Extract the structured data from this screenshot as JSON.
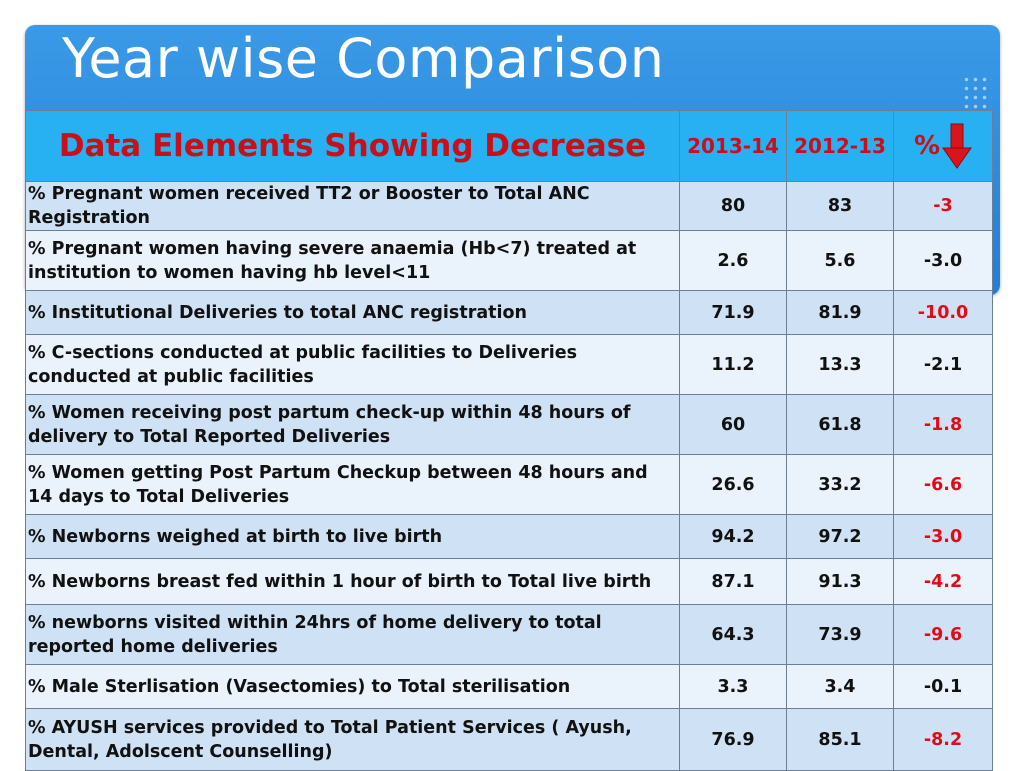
{
  "slide_title": "Year wise Comparison",
  "table": {
    "header": {
      "label": "Data Elements Showing Decrease",
      "col1": "2013-14",
      "col2": "2012-13",
      "col3": "%"
    },
    "arrow_icon": "down-arrow-icon",
    "highlight_color": "#e20a14",
    "rows": [
      {
        "label": "% Pregnant women received TT2 or Booster to Total ANC Registration",
        "v2013": "80",
        "v2012": "83",
        "pct": "-3",
        "red": true
      },
      {
        "label": "% Pregnant women having severe anaemia (Hb<7) treated at institution to women having hb level<11",
        "v2013": "2.6",
        "v2012": "5.6",
        "pct": "-3.0",
        "red": false
      },
      {
        "label": "% Institutional Deliveries to total ANC registration",
        "v2013": "71.9",
        "v2012": "81.9",
        "pct": "-10.0",
        "red": true
      },
      {
        "label": "% C-sections conducted at public facilities to Deliveries conducted at public facilities",
        "v2013": "11.2",
        "v2012": "13.3",
        "pct": "-2.1",
        "red": false
      },
      {
        "label": "% Women receiving post partum check-up within 48 hours of delivery to Total Reported Deliveries",
        "v2013": "60",
        "v2012": "61.8",
        "pct": "-1.8",
        "red": true
      },
      {
        "label": "% Women getting Post Partum Checkup between 48 hours and 14 days to Total Deliveries",
        "v2013": "26.6",
        "v2012": "33.2",
        "pct": "-6.6",
        "red": true
      },
      {
        "label": "% Newborns weighed at birth to live birth",
        "v2013": "94.2",
        "v2012": "97.2",
        "pct": "-3.0",
        "red": true
      },
      {
        "label": "% Newborns breast fed within 1 hour of birth to Total live birth",
        "v2013": "87.1",
        "v2012": "91.3",
        "pct": "-4.2",
        "red": true
      },
      {
        "label": "% newborns visited within 24hrs of home delivery to total reported home deliveries",
        "v2013": "64.3",
        "v2012": "73.9",
        "pct": "-9.6",
        "red": true
      },
      {
        "label": "% Male Sterlisation (Vasectomies) to Total sterilisation",
        "v2013": "3.3",
        "v2012": "3.4",
        "pct": "-0.1",
        "red": false
      },
      {
        "label": "% AYUSH services provided to Total Patient Services ( Ayush, Dental, Adolscent Counselling)",
        "v2013": "76.9",
        "v2012": "85.1",
        "pct": "-8.2",
        "red": true
      }
    ]
  }
}
